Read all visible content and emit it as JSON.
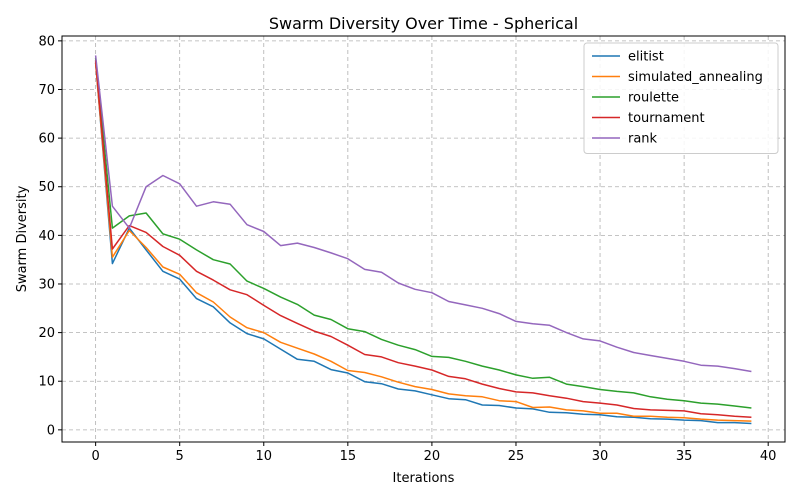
{
  "chart_data": {
    "type": "line",
    "title": "Swarm Diversity Over Time - Spherical",
    "xlabel": "Iterations",
    "ylabel": "Swarm Diversity",
    "xlim": [
      -2,
      41
    ],
    "ylim": [
      -2.5,
      81
    ],
    "xticks": [
      0,
      5,
      10,
      15,
      20,
      25,
      30,
      35,
      40
    ],
    "yticks": [
      0,
      10,
      20,
      30,
      40,
      50,
      60,
      70,
      80
    ],
    "grid": true,
    "legend_position": "top-right",
    "x": [
      0,
      1,
      2,
      3,
      4,
      5,
      6,
      7,
      8,
      9,
      10,
      11,
      12,
      13,
      14,
      15,
      16,
      17,
      18,
      19,
      20,
      21,
      22,
      23,
      24,
      25,
      26,
      27,
      28,
      29,
      30,
      31,
      32,
      33,
      34,
      35,
      36,
      37,
      38,
      39
    ],
    "series": [
      {
        "name": "elitist",
        "color": "#1f77b4",
        "values": [
          75.5,
          34.2,
          41.5,
          37.0,
          32.6,
          31.0,
          27.0,
          25.3,
          22.0,
          19.8,
          18.7,
          16.6,
          14.5,
          14.1,
          12.4,
          11.7,
          9.9,
          9.5,
          8.4,
          8.0,
          7.2,
          6.4,
          6.2,
          5.1,
          5.0,
          4.5,
          4.3,
          3.6,
          3.5,
          3.2,
          3.1,
          2.7,
          2.6,
          2.3,
          2.2,
          2.0,
          1.9,
          1.5,
          1.5,
          1.3
        ]
      },
      {
        "name": "simulated_annealing",
        "color": "#ff7f0e",
        "values": [
          75.5,
          35.5,
          41.0,
          37.5,
          33.5,
          32.0,
          28.2,
          26.3,
          23.2,
          21.0,
          20.0,
          18.0,
          16.8,
          15.6,
          14.1,
          12.2,
          11.8,
          10.9,
          9.8,
          8.9,
          8.3,
          7.4,
          7.0,
          6.8,
          6.0,
          5.8,
          4.6,
          4.7,
          4.1,
          3.9,
          3.4,
          3.4,
          2.8,
          2.8,
          2.6,
          2.5,
          2.2,
          2.0,
          1.9,
          1.8
        ]
      },
      {
        "name": "roulette",
        "color": "#2ca02c",
        "values": [
          76.5,
          41.5,
          44.0,
          44.6,
          40.3,
          39.2,
          37.0,
          35.0,
          34.1,
          30.6,
          29.1,
          27.3,
          25.8,
          23.6,
          22.7,
          20.8,
          20.2,
          18.6,
          17.4,
          16.5,
          15.1,
          14.9,
          14.1,
          13.1,
          12.3,
          11.3,
          10.6,
          10.8,
          9.4,
          8.9,
          8.3,
          7.9,
          7.6,
          6.8,
          6.3,
          6.0,
          5.5,
          5.3,
          4.9,
          4.5
        ]
      },
      {
        "name": "tournament",
        "color": "#d62728",
        "values": [
          76.0,
          37.2,
          42.0,
          40.6,
          37.7,
          35.9,
          32.6,
          30.8,
          28.8,
          27.8,
          25.6,
          23.5,
          21.9,
          20.3,
          19.2,
          17.4,
          15.5,
          15.0,
          13.8,
          13.1,
          12.3,
          11.0,
          10.5,
          9.4,
          8.5,
          7.8,
          7.6,
          7.0,
          6.5,
          5.8,
          5.5,
          5.1,
          4.4,
          4.1,
          4.0,
          3.9,
          3.3,
          3.1,
          2.8,
          2.6
        ]
      },
      {
        "name": "rank",
        "color": "#9467bd",
        "values": [
          77.0,
          46.0,
          41.5,
          50.0,
          52.3,
          50.6,
          46.0,
          46.9,
          46.4,
          42.2,
          40.8,
          37.9,
          38.4,
          37.5,
          36.4,
          35.2,
          33.0,
          32.4,
          30.2,
          28.9,
          28.2,
          26.4,
          25.7,
          25.0,
          23.9,
          22.3,
          21.8,
          21.5,
          20.0,
          18.7,
          18.3,
          17.0,
          15.9,
          15.3,
          14.7,
          14.1,
          13.3,
          13.1,
          12.6,
          12.0
        ]
      }
    ]
  }
}
